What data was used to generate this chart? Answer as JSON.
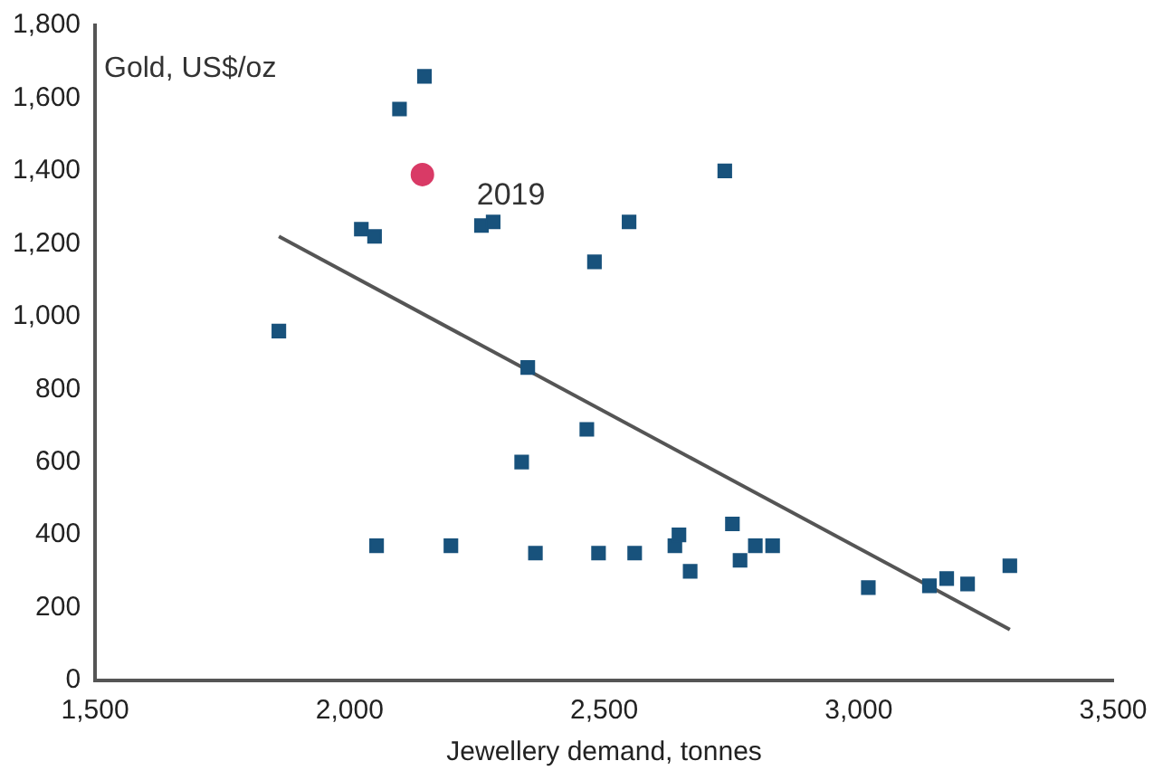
{
  "chart_data": {
    "type": "scatter",
    "xlabel": "Jewellery demand, tonnes",
    "ylabel": "Gold, US$/oz",
    "marker": "square",
    "grid": false,
    "xlim": [
      1500,
      3500
    ],
    "xticks": [
      {
        "value": 1500,
        "label": "1,500"
      },
      {
        "value": 2000,
        "label": "2,000"
      },
      {
        "value": 2500,
        "label": "2,500"
      },
      {
        "value": 3000,
        "label": "3,000"
      },
      {
        "value": 3500,
        "label": "3,500"
      }
    ],
    "ylim": [
      0,
      1800
    ],
    "yticks": [
      0,
      200,
      400,
      600,
      800,
      {
        "value": 1000,
        "label": "1,000"
      },
      {
        "value": 1200,
        "label": "1,200"
      },
      {
        "value": 1400,
        "label": "1,400"
      },
      {
        "value": 1600,
        "label": "1,600"
      },
      {
        "value": 1800,
        "label": "1,800"
      }
    ],
    "annotations": [
      {
        "text": "2019",
        "x": 2143,
        "y": 1390
      }
    ],
    "series": [
      {
        "color": "#18527c",
        "x": [
          1861,
          2023,
          2049,
          2098,
          2147,
          2259,
          2282,
          2481,
          2549,
          2737,
          2350,
          2466,
          2338,
          2053,
          2199,
          2365,
          2489,
          2560,
          2639,
          2647,
          2669,
          2752,
          2767,
          2797,
          2831,
          3019,
          3139,
          3173,
          3214,
          3297
        ],
        "values": [
          960,
          1240,
          1220,
          1570,
          1660,
          1250,
          1260,
          1150,
          1260,
          1400,
          860,
          690,
          600,
          370,
          370,
          350,
          350,
          350,
          370,
          400,
          300,
          430,
          330,
          370,
          370,
          255,
          260,
          280,
          265,
          315
        ]
      },
      {
        "color": "#d93a66",
        "marker": "circle",
        "x": [
          2143
        ],
        "values": [
          1390
        ]
      },
      {
        "type": "line",
        "color": "#555555",
        "marker": "none",
        "x": [
          1861,
          3297
        ],
        "values": [
          1220,
          140
        ]
      }
    ]
  }
}
